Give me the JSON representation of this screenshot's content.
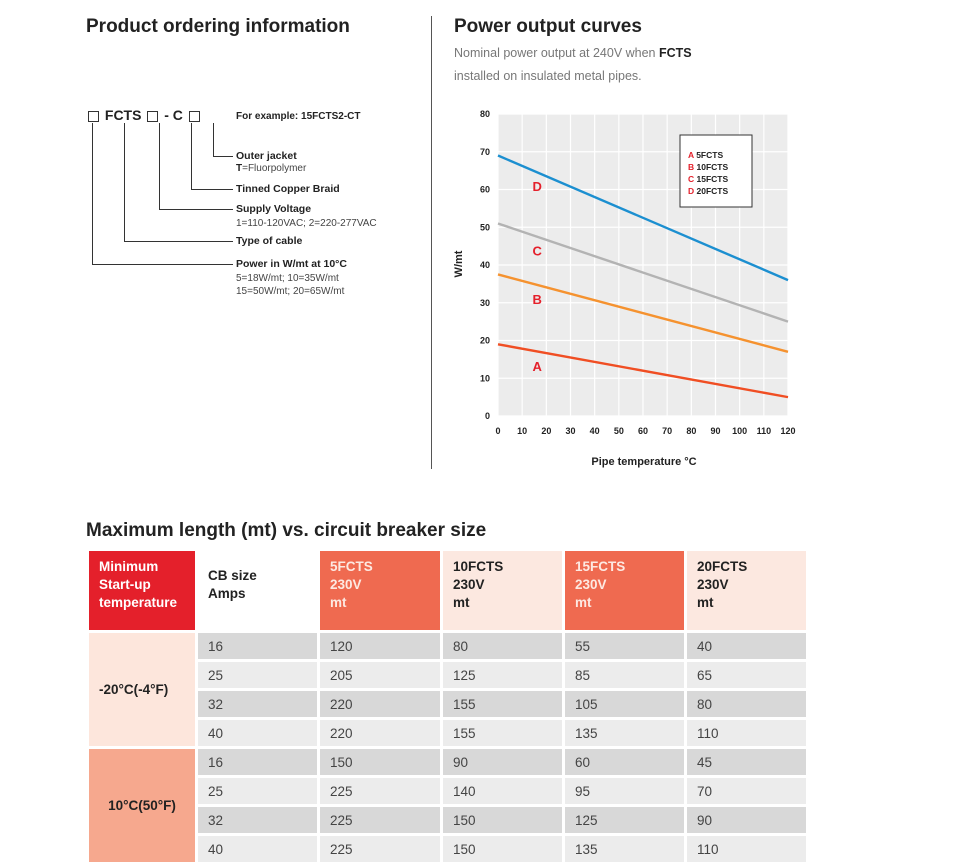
{
  "ordering": {
    "title": "Product ordering information",
    "code": {
      "part1": "FCTS",
      "part2": "- C"
    },
    "example": "For example: 15FCTS2-CT",
    "items": [
      {
        "label": "Outer jacket",
        "sub_bold": "T",
        "sub": "=Fluorpolymer"
      },
      {
        "label": "Tinned Copper Braid"
      },
      {
        "label": "Supply Voltage",
        "sub": "1=110-120VAC; 2=220-277VAC"
      },
      {
        "label": "Type of cable"
      },
      {
        "label": "Power in W/mt at 10°C",
        "sub": "5=18W/mt; 10=35W/mt",
        "sub2": "15=50W/mt; 20=65W/mt"
      }
    ]
  },
  "curves": {
    "title": "Power output curves",
    "subtitle_pre": "Nominal power output at 240V when ",
    "subtitle_bold": "FCTS",
    "subtitle_post": "installed on insulated metal pipes."
  },
  "chart_data": {
    "type": "line",
    "xlabel": "Pipe temperature °C",
    "ylabel": "W/mt",
    "xlim": [
      0,
      120
    ],
    "ylim": [
      0,
      80
    ],
    "x_ticks": [
      0,
      10,
      20,
      30,
      40,
      50,
      60,
      70,
      80,
      90,
      100,
      110,
      120
    ],
    "y_ticks": [
      0,
      10,
      20,
      30,
      40,
      50,
      60,
      70,
      80
    ],
    "grid": true,
    "legend_position": "top-right",
    "series": [
      {
        "name": "5FCTS",
        "letter": "A",
        "color": "#f04e23",
        "x": [
          0,
          120
        ],
        "y": [
          19,
          5
        ]
      },
      {
        "name": "10FCTS",
        "letter": "B",
        "color": "#f5922f",
        "x": [
          0,
          120
        ],
        "y": [
          37.5,
          17
        ]
      },
      {
        "name": "15FCTS",
        "letter": "C",
        "color": "#b3b3b3",
        "x": [
          0,
          120
        ],
        "y": [
          51,
          25
        ]
      },
      {
        "name": "20FCTS",
        "letter": "D",
        "color": "#1c8fd0",
        "x": [
          0,
          120
        ],
        "y": [
          69,
          36
        ]
      }
    ],
    "letter_color": "#e4202b"
  },
  "table": {
    "title": "Maximum length (mt) vs. circuit breaker size",
    "headers": [
      [
        "Minimum",
        "Start-up",
        "temperature"
      ],
      [
        "CB size",
        "Amps"
      ],
      [
        "5FCTS",
        "230V",
        "mt"
      ],
      [
        "10FCTS",
        "230V",
        "mt"
      ],
      [
        "15FCTS",
        "230V",
        "mt"
      ],
      [
        "20FCTS",
        "230V",
        "mt"
      ]
    ],
    "groups": [
      {
        "label": "-20°C(-4°F)",
        "rows": [
          [
            "16",
            "120",
            "80",
            "55",
            "40"
          ],
          [
            "25",
            "205",
            "125",
            "85",
            "65"
          ],
          [
            "32",
            "220",
            "155",
            "105",
            "80"
          ],
          [
            "40",
            "220",
            "155",
            "135",
            "110"
          ]
        ]
      },
      {
        "label": "10°C(50°F)",
        "rows": [
          [
            "16",
            "150",
            "90",
            "60",
            "45"
          ],
          [
            "25",
            "225",
            "140",
            "95",
            "70"
          ],
          [
            "32",
            "225",
            "150",
            "125",
            "90"
          ],
          [
            "40",
            "225",
            "150",
            "135",
            "110"
          ]
        ]
      }
    ]
  }
}
